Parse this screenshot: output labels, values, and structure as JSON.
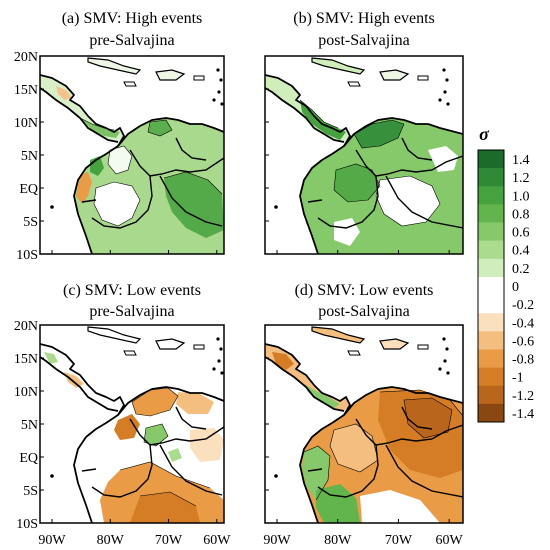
{
  "panels": [
    {
      "id": "a",
      "title_line1": "(a) SMV: High events",
      "title_line2": "pre-Salvajina",
      "kind": "high",
      "period": "pre"
    },
    {
      "id": "b",
      "title_line1": "(b) SMV: High events",
      "title_line2": "post-Salvajina",
      "kind": "high",
      "period": "post"
    },
    {
      "id": "c",
      "title_line1": "(c) SMV: Low events",
      "title_line2": "pre-Salvajina",
      "kind": "low",
      "period": "pre"
    },
    {
      "id": "d",
      "title_line1": "(d) SMV: Low events",
      "title_line2": "post-Salvajina",
      "kind": "low",
      "period": "post"
    }
  ],
  "lat_ticks": [
    "20N",
    "15N",
    "10N",
    "5N",
    "EQ",
    "5S",
    "10S"
  ],
  "lon_ticks": [
    "90W",
    "80W",
    "70W",
    "60W"
  ],
  "colorbar": {
    "label": "σ",
    "tick_labels": [
      "1.4",
      "1.2",
      "1.0",
      "0.8",
      "0.6",
      "0.4",
      "0.2",
      "0",
      "-0.2",
      "-0.4",
      "-0.6",
      "-0.8",
      "-1",
      "-1.2",
      "-1.4"
    ],
    "colors": [
      "#1b6b2a",
      "#2f8a36",
      "#46a23f",
      "#62b54c",
      "#86c96a",
      "#abdc8e",
      "#cfeebb",
      "#ffffff",
      "#ffffff",
      "#fbe0bd",
      "#f4bf7e",
      "#e99c45",
      "#d57d25",
      "#b9651b",
      "#8a4712"
    ]
  }
}
